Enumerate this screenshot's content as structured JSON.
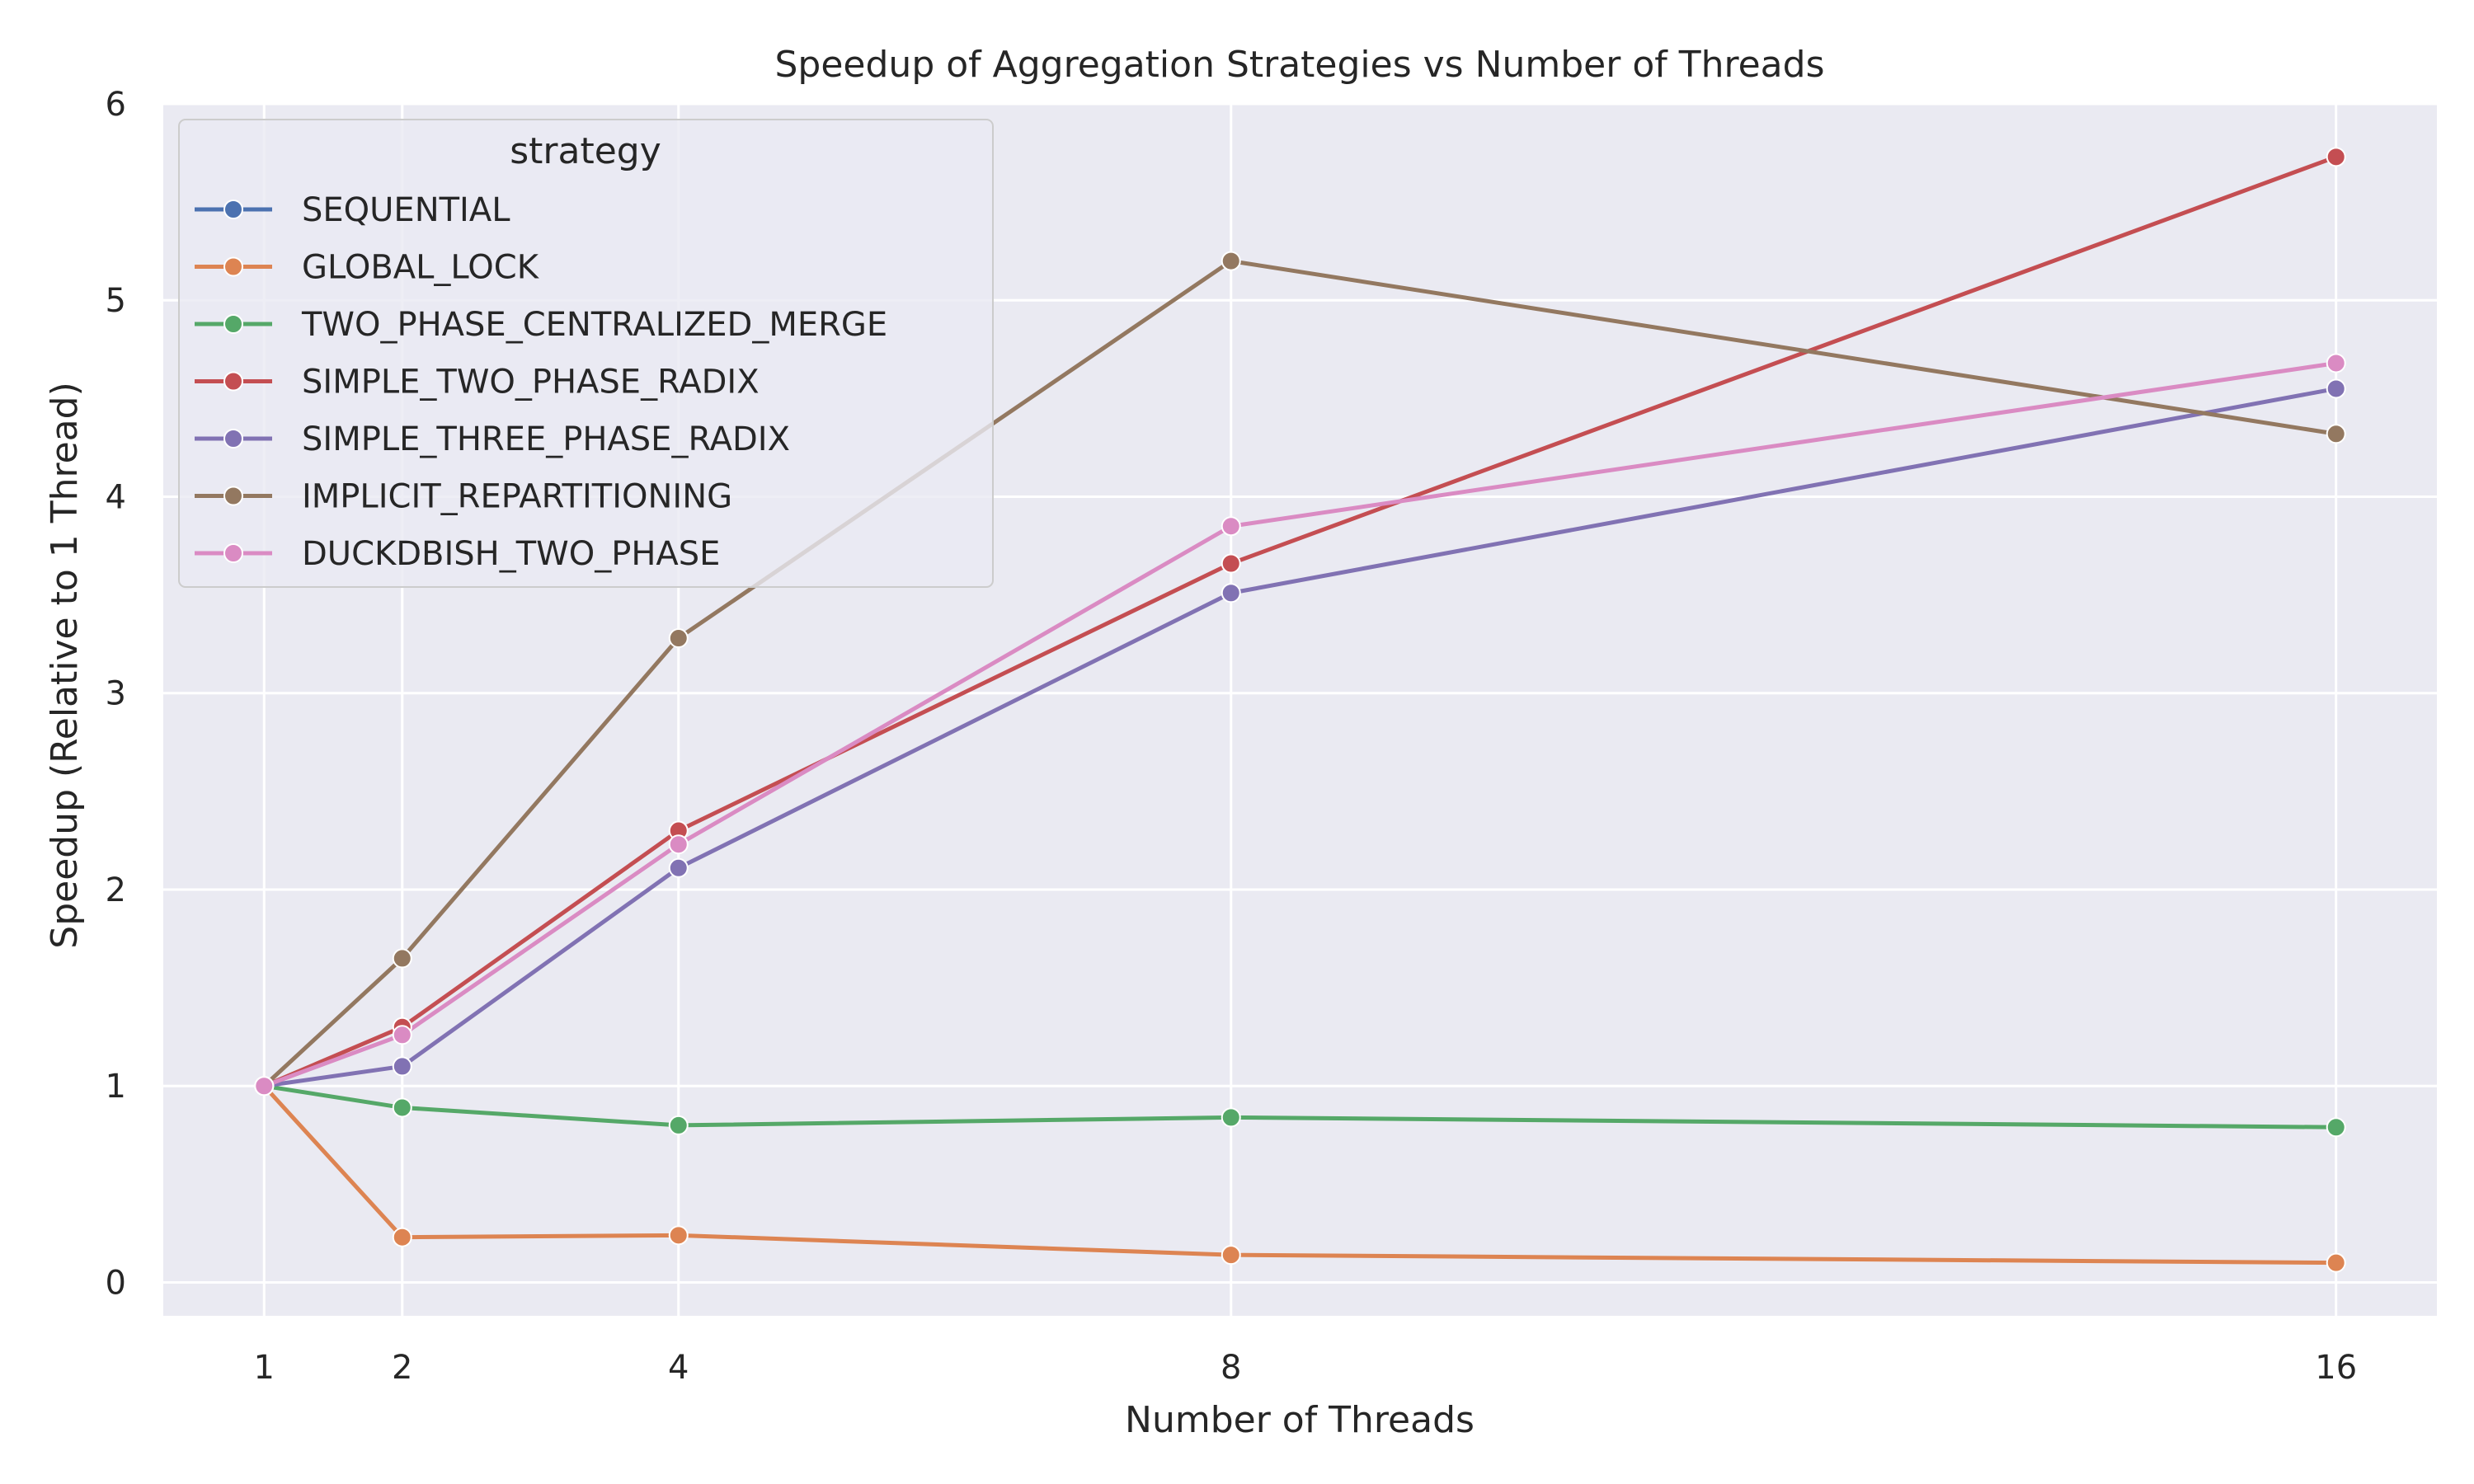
{
  "chart_data": {
    "type": "line",
    "title": "Speedup of Aggregation Strategies vs Number of Threads",
    "xlabel": "Number of Threads",
    "ylabel": "Speedup (Relative to 1 Thread)",
    "x": [
      1,
      2,
      4,
      8,
      16
    ],
    "x_tick_labels": [
      "1",
      "2",
      "4",
      "8",
      "16"
    ],
    "y_tick_labels": [
      "0",
      "1",
      "2",
      "3",
      "4",
      "5",
      "6"
    ],
    "xlim": [
      0.27,
      16.73
    ],
    "ylim": [
      -0.17,
      6.0
    ],
    "grid": true,
    "legend": {
      "title": "strategy",
      "position": "top-left"
    },
    "series": [
      {
        "name": "SEQUENTIAL",
        "color": "#4c72b0",
        "values": [
          1.0,
          null,
          null,
          null,
          null
        ]
      },
      {
        "name": "GLOBAL_LOCK",
        "color": "#dd8452",
        "values": [
          1.0,
          0.23,
          0.24,
          0.14,
          0.1
        ]
      },
      {
        "name": "TWO_PHASE_CENTRALIZED_MERGE",
        "color": "#55a868",
        "values": [
          1.0,
          0.89,
          0.8,
          0.84,
          0.79
        ]
      },
      {
        "name": "SIMPLE_TWO_PHASE_RADIX",
        "color": "#c44e52",
        "values": [
          1.0,
          1.3,
          2.3,
          3.66,
          5.73
        ]
      },
      {
        "name": "SIMPLE_THREE_PHASE_RADIX",
        "color": "#8172b3",
        "values": [
          1.0,
          1.1,
          2.11,
          3.51,
          4.55
        ]
      },
      {
        "name": "IMPLICIT_REPARTITIONING",
        "color": "#937860",
        "values": [
          1.0,
          1.65,
          3.28,
          5.2,
          4.32
        ]
      },
      {
        "name": "DUCKDBISH_TWO_PHASE",
        "color": "#da8bc3",
        "values": [
          1.0,
          1.26,
          2.23,
          3.85,
          4.68
        ]
      }
    ]
  },
  "colors": {
    "plot_background": "#eaeaf2",
    "grid": "#ffffff",
    "marker_edge": "#ffffff"
  }
}
